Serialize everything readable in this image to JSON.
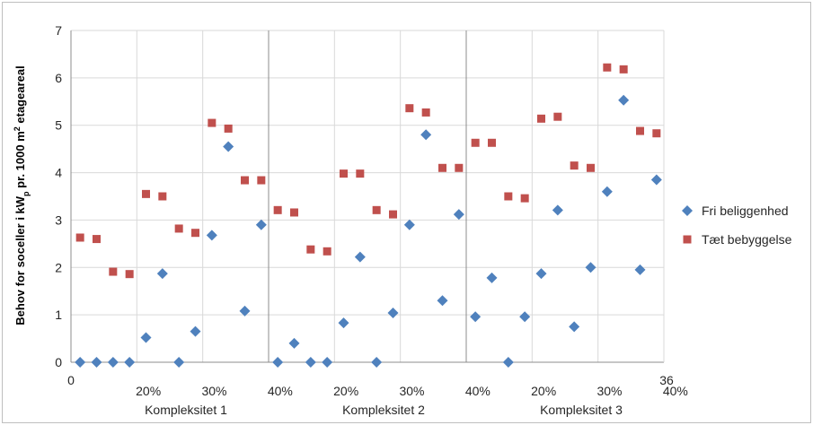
{
  "chart_data": {
    "type": "scatter",
    "title": "",
    "ylabel": "Behov for soceller i kWp pr. 1000 m² etageareal",
    "ylabel_parts": {
      "pre": "Behov for soceller i kW",
      "sub": "p",
      "mid": " pr. 1000 m",
      "sup": "2",
      "post": " etageareal"
    },
    "xlim": [
      0,
      36
    ],
    "ylim": [
      0,
      7
    ],
    "y_ticks": [
      "0",
      "1",
      "2",
      "3",
      "4",
      "5",
      "6",
      "7"
    ],
    "x_end_labels": [
      "0",
      "36"
    ],
    "x_percent_labels": [
      {
        "x": 4,
        "label": "20%"
      },
      {
        "x": 8,
        "label": "30%"
      },
      {
        "x": 12,
        "label": "40%"
      },
      {
        "x": 16,
        "label": "20%"
      },
      {
        "x": 20,
        "label": "30%"
      },
      {
        "x": 24,
        "label": "40%"
      },
      {
        "x": 28,
        "label": "20%"
      },
      {
        "x": 32,
        "label": "30%"
      },
      {
        "x": 36,
        "label": "40%"
      }
    ],
    "group_labels": [
      {
        "x": 6,
        "label": "Kompleksitet 1"
      },
      {
        "x": 18,
        "label": "Kompleksitet 2"
      },
      {
        "x": 30,
        "label": "Kompleksitet 3"
      }
    ],
    "group_dividers": [
      12,
      24
    ],
    "series": [
      {
        "name": "Fri beliggenhed",
        "color": "#4f81bd",
        "marker": "diamond",
        "points": [
          [
            1,
            0
          ],
          [
            2,
            0
          ],
          [
            3,
            0
          ],
          [
            4,
            0
          ],
          [
            5,
            0.52
          ],
          [
            6,
            1.87
          ],
          [
            7,
            0
          ],
          [
            8,
            0.65
          ],
          [
            9,
            2.68
          ],
          [
            10,
            4.55
          ],
          [
            11,
            1.08
          ],
          [
            12,
            2.9
          ],
          [
            13,
            0
          ],
          [
            14,
            0.4
          ],
          [
            15,
            0
          ],
          [
            16,
            0
          ],
          [
            17,
            0.83
          ],
          [
            18,
            2.22
          ],
          [
            19,
            0
          ],
          [
            20,
            1.04
          ],
          [
            21,
            2.9
          ],
          [
            22,
            4.8
          ],
          [
            23,
            1.3
          ],
          [
            24,
            3.12
          ],
          [
            25,
            0.96
          ],
          [
            26,
            1.78
          ],
          [
            27,
            0
          ],
          [
            28,
            0.96
          ],
          [
            29,
            1.87
          ],
          [
            30,
            3.21
          ],
          [
            31,
            0.75
          ],
          [
            32,
            2.0
          ],
          [
            33,
            3.6
          ],
          [
            34,
            5.53
          ],
          [
            35,
            1.95
          ],
          [
            36,
            3.85
          ]
        ]
      },
      {
        "name": "Tæt bebyggelse",
        "color": "#c0504d",
        "marker": "square",
        "points": [
          [
            1,
            2.63
          ],
          [
            2,
            2.6
          ],
          [
            3,
            1.91
          ],
          [
            4,
            1.86
          ],
          [
            5,
            3.55
          ],
          [
            6,
            3.5
          ],
          [
            7,
            2.82
          ],
          [
            8,
            2.73
          ],
          [
            9,
            5.05
          ],
          [
            10,
            4.93
          ],
          [
            11,
            3.84
          ],
          [
            12,
            3.84
          ],
          [
            13,
            3.21
          ],
          [
            14,
            3.16
          ],
          [
            15,
            2.38
          ],
          [
            16,
            2.34
          ],
          [
            17,
            3.98
          ],
          [
            18,
            3.98
          ],
          [
            19,
            3.21
          ],
          [
            20,
            3.12
          ],
          [
            21,
            5.36
          ],
          [
            22,
            5.27
          ],
          [
            23,
            4.1
          ],
          [
            24,
            4.1
          ],
          [
            25,
            4.63
          ],
          [
            26,
            4.63
          ],
          [
            27,
            3.5
          ],
          [
            28,
            3.46
          ],
          [
            29,
            5.14
          ],
          [
            30,
            5.18
          ],
          [
            31,
            4.15
          ],
          [
            32,
            4.1
          ],
          [
            33,
            6.22
          ],
          [
            34,
            6.18
          ],
          [
            35,
            4.88
          ],
          [
            36,
            4.83
          ]
        ]
      }
    ],
    "legend": {
      "position": "right"
    }
  }
}
